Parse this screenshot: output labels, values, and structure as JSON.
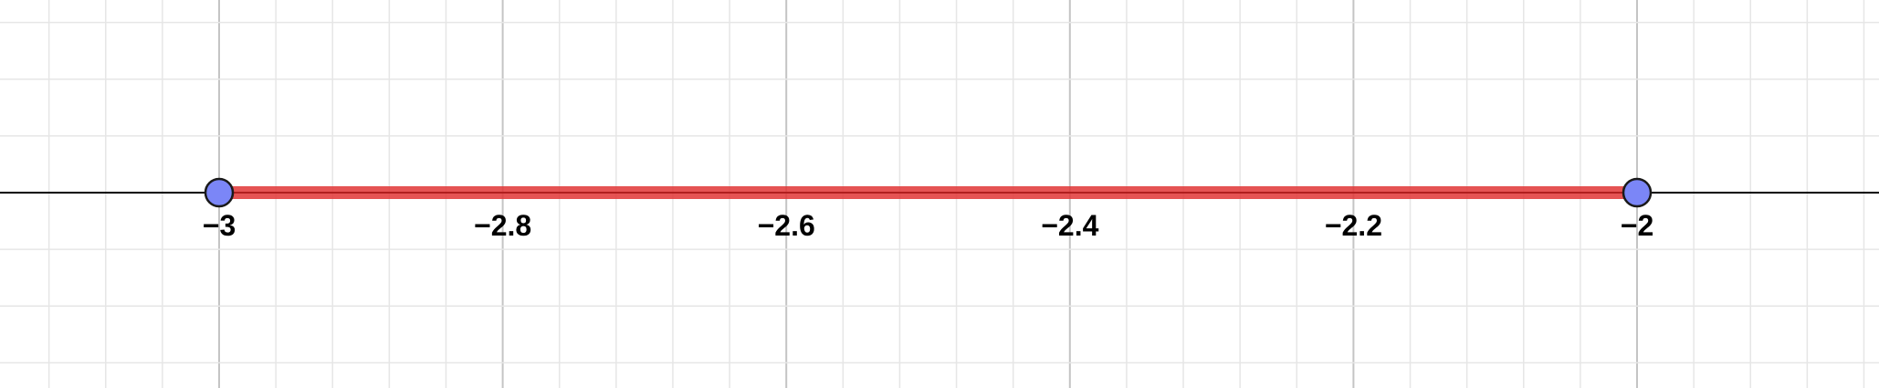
{
  "chart_data": {
    "type": "number-line",
    "x_range": [
      -3.155,
      -1.83
    ],
    "ticks": [
      {
        "value": -3,
        "label": "−3"
      },
      {
        "value": -2.8,
        "label": "−2.8"
      },
      {
        "value": -2.6,
        "label": "−2.6"
      },
      {
        "value": -2.4,
        "label": "−2.4"
      },
      {
        "value": -2.2,
        "label": "−2.2"
      },
      {
        "value": -2,
        "label": "−2"
      }
    ],
    "minor_grid_step": 0.04,
    "major_grid_step": 0.2,
    "segment": {
      "from": -3,
      "to": -2,
      "color": "#e03535"
    },
    "endpoints": [
      {
        "value": -3,
        "closed": true,
        "color": "#7b86f7"
      },
      {
        "value": -2,
        "closed": true,
        "color": "#7b86f7"
      }
    ],
    "grid": true,
    "colors": {
      "axis": "#000000",
      "minor_grid": "#e6e6e6",
      "major_grid": "#c4c4c4"
    }
  }
}
